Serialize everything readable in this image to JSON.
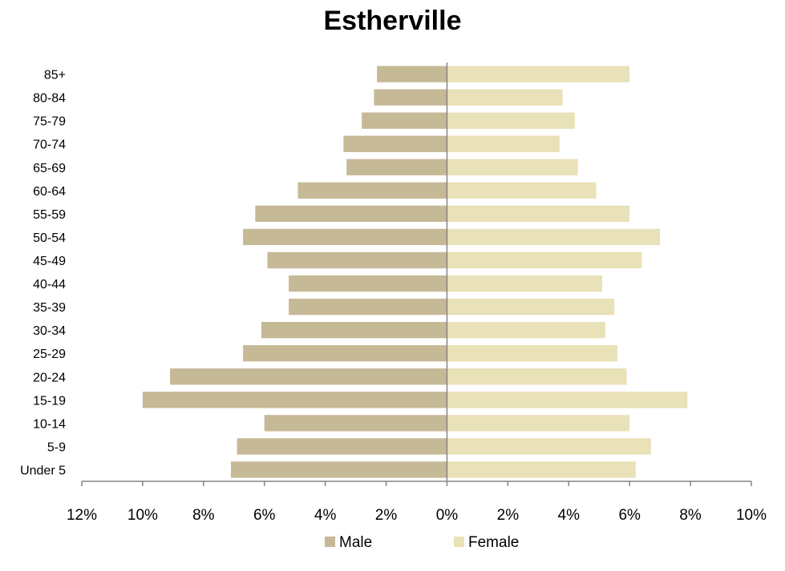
{
  "chart_data": {
    "type": "bar",
    "orientation": "horizontal",
    "layout": "population-pyramid",
    "title": "Estherville",
    "xlabel": "",
    "ylabel": "",
    "categories": [
      "Under 5",
      "5-9",
      "10-14",
      "15-19",
      "20-24",
      "25-29",
      "30-34",
      "35-39",
      "40-44",
      "45-49",
      "50-54",
      "55-59",
      "60-64",
      "65-69",
      "70-74",
      "75-79",
      "80-84",
      "85+"
    ],
    "series": [
      {
        "name": "Male",
        "color": "#c6b996",
        "direction": "left",
        "values": [
          7.1,
          6.9,
          6.0,
          10.0,
          9.1,
          6.7,
          6.1,
          5.2,
          5.2,
          5.9,
          6.7,
          6.3,
          4.9,
          3.3,
          3.4,
          2.8,
          2.4,
          2.3
        ]
      },
      {
        "name": "Female",
        "color": "#e9e1b7",
        "direction": "right",
        "values": [
          6.2,
          6.7,
          6.0,
          7.9,
          5.9,
          5.6,
          5.2,
          5.5,
          5.1,
          6.4,
          7.0,
          6.0,
          4.9,
          4.3,
          3.7,
          4.2,
          3.8,
          6.0
        ]
      }
    ],
    "xlim": [
      -12,
      10
    ],
    "xticks": [
      -12,
      -10,
      -8,
      -6,
      -4,
      -2,
      0,
      2,
      4,
      6,
      8,
      10
    ],
    "xtick_labels": [
      "12%",
      "10%",
      "8%",
      "6%",
      "4%",
      "2%",
      "0%",
      "2%",
      "4%",
      "6%",
      "8%",
      "10%"
    ],
    "grid": false,
    "legend": {
      "position": "bottom",
      "entries": [
        "Male",
        "Female"
      ]
    },
    "axis_color": "#868686"
  }
}
